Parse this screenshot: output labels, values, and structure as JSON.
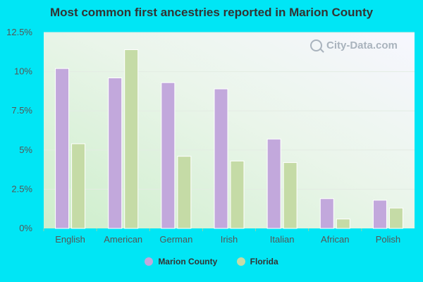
{
  "colors": {
    "background": "#00e6f5",
    "series_1": "#c2a8dc",
    "series_2": "#c5dba6"
  },
  "watermark": {
    "text": "City-Data.com",
    "icon": "magnifier-icon"
  },
  "chart_data": {
    "type": "bar",
    "title": "Most common first ancestries reported in Marion County",
    "categories": [
      "English",
      "American",
      "German",
      "Irish",
      "Italian",
      "African",
      "Polish"
    ],
    "series": [
      {
        "name": "Marion County",
        "color": "#c2a8dc",
        "values": [
          10.2,
          9.6,
          9.3,
          8.9,
          5.7,
          1.9,
          1.8
        ]
      },
      {
        "name": "Florida",
        "color": "#c5dba6",
        "values": [
          5.4,
          11.4,
          4.6,
          4.3,
          4.2,
          0.6,
          1.3
        ]
      }
    ],
    "ylim": [
      0,
      12.5
    ],
    "yticks": [
      "0%",
      "2.5%",
      "5%",
      "7.5%",
      "10%",
      "12.5%"
    ],
    "ytick_values": [
      0,
      2.5,
      5,
      7.5,
      10,
      12.5
    ],
    "grid": true,
    "legend": "bottom-center",
    "xlabel": "",
    "ylabel": ""
  }
}
